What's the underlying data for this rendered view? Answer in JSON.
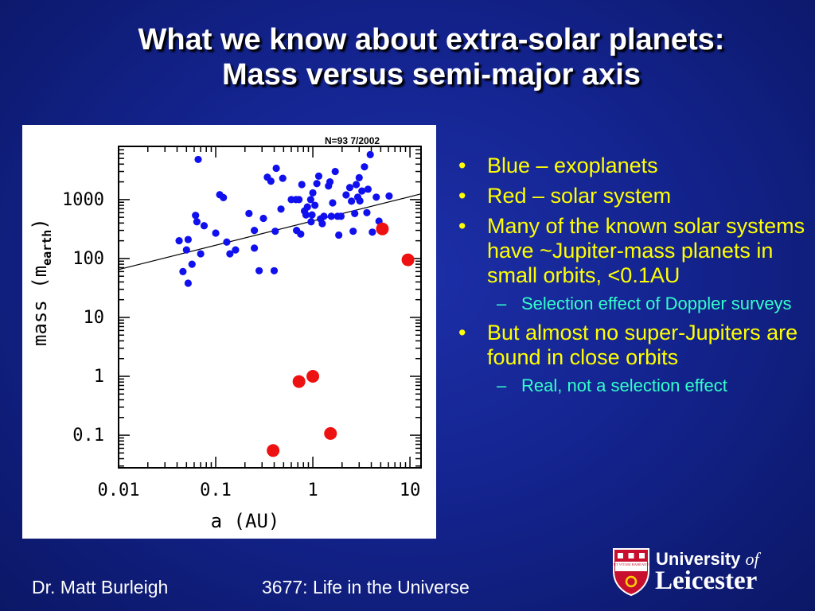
{
  "slide": {
    "title_line1": "What we know about extra-solar planets:",
    "title_line2": "Mass versus semi-major axis"
  },
  "bullets": [
    {
      "level": 1,
      "text": "Blue – exoplanets"
    },
    {
      "level": 1,
      "text": "Red – solar system"
    },
    {
      "level": 1,
      "text": "Many of the known solar systems have ~Jupiter-mass planets in small orbits, <0.1AU"
    },
    {
      "level": 2,
      "text": "Selection effect of Doppler surveys"
    },
    {
      "level": 1,
      "text": "But almost no super-Jupiters are found in close orbits"
    },
    {
      "level": 2,
      "text": "Real, not a selection effect"
    }
  ],
  "footer": {
    "author": "Dr. Matt Burleigh",
    "course": "3677: Life in the Universe"
  },
  "logo": {
    "line1": "University",
    "line1_of": "of",
    "line2": "Leicester",
    "crest_text": "UT VITAM HABEANT"
  },
  "colors": {
    "background": "#142490",
    "title": "#ffffff",
    "bullet": "#ffff00",
    "sub_bullet": "#33ffcc",
    "exoplanet": "#1010ee",
    "solar_system": "#ee1111"
  },
  "chart_data": {
    "type": "scatter",
    "annotation": "N=93 7/2002",
    "xlabel": "a (AU)",
    "ylabel": "mass (m",
    "ylabel_sub": "earth",
    "ylabel_close": ")",
    "x_scale": "log",
    "y_scale": "log",
    "xlim": [
      0.01,
      13
    ],
    "ylim": [
      0.028,
      8000
    ],
    "x_ticks": [
      {
        "value": 0.01,
        "label": "0.01"
      },
      {
        "value": 0.1,
        "label": "0.1"
      },
      {
        "value": 1,
        "label": "1"
      },
      {
        "value": 10,
        "label": "10"
      }
    ],
    "y_ticks": [
      {
        "value": 0.1,
        "label": "0.1"
      },
      {
        "value": 1,
        "label": "1"
      },
      {
        "value": 10,
        "label": "10"
      },
      {
        "value": 100,
        "label": "100"
      },
      {
        "value": 1000,
        "label": "1000"
      }
    ],
    "fit_line": {
      "x": [
        0.01,
        13
      ],
      "y": [
        65,
        1250
      ]
    },
    "series": [
      {
        "name": "exoplanets",
        "color": "#1010ee",
        "points": [
          [
            0.042,
            200
          ],
          [
            0.046,
            60
          ],
          [
            0.05,
            140
          ],
          [
            0.052,
            210
          ],
          [
            0.052,
            38
          ],
          [
            0.057,
            80
          ],
          [
            0.062,
            540
          ],
          [
            0.064,
            420
          ],
          [
            0.066,
            4800
          ],
          [
            0.07,
            120
          ],
          [
            0.076,
            360
          ],
          [
            0.1,
            270
          ],
          [
            0.11,
            1210
          ],
          [
            0.12,
            1080
          ],
          [
            0.13,
            190
          ],
          [
            0.14,
            120
          ],
          [
            0.16,
            140
          ],
          [
            0.22,
            580
          ],
          [
            0.25,
            300
          ],
          [
            0.25,
            150
          ],
          [
            0.28,
            62
          ],
          [
            0.31,
            480
          ],
          [
            0.34,
            2400
          ],
          [
            0.37,
            2050
          ],
          [
            0.4,
            62
          ],
          [
            0.41,
            290
          ],
          [
            0.42,
            3400
          ],
          [
            0.47,
            690
          ],
          [
            0.49,
            2300
          ],
          [
            0.6,
            1000
          ],
          [
            0.67,
            1000
          ],
          [
            0.68,
            300
          ],
          [
            0.72,
            1000
          ],
          [
            0.75,
            260
          ],
          [
            0.77,
            1800
          ],
          [
            0.82,
            640
          ],
          [
            0.85,
            550
          ],
          [
            0.88,
            750
          ],
          [
            0.95,
            1000
          ],
          [
            0.96,
            420
          ],
          [
            0.98,
            550
          ],
          [
            1.0,
            1300
          ],
          [
            1.05,
            800
          ],
          [
            1.1,
            1870
          ],
          [
            1.15,
            2500
          ],
          [
            1.2,
            470
          ],
          [
            1.25,
            390
          ],
          [
            1.3,
            520
          ],
          [
            1.45,
            1700
          ],
          [
            1.5,
            2000
          ],
          [
            1.55,
            520
          ],
          [
            1.6,
            880
          ],
          [
            1.7,
            3000
          ],
          [
            1.8,
            520
          ],
          [
            1.85,
            250
          ],
          [
            1.95,
            520
          ],
          [
            2.2,
            1200
          ],
          [
            2.4,
            1600
          ],
          [
            2.5,
            940
          ],
          [
            2.6,
            290
          ],
          [
            2.7,
            580
          ],
          [
            2.8,
            1800
          ],
          [
            2.9,
            1100
          ],
          [
            3.0,
            2350
          ],
          [
            3.05,
            950
          ],
          [
            3.2,
            1400
          ],
          [
            3.4,
            3600
          ],
          [
            3.6,
            600
          ],
          [
            3.7,
            1500
          ],
          [
            3.9,
            5800
          ],
          [
            4.1,
            280
          ],
          [
            4.5,
            1100
          ],
          [
            4.8,
            430
          ],
          [
            5.3,
            300
          ],
          [
            6.1,
            1150
          ]
        ]
      },
      {
        "name": "solar system",
        "color": "#ee1111",
        "points": [
          [
            0.39,
            0.055
          ],
          [
            0.72,
            0.815
          ],
          [
            1.0,
            1.0
          ],
          [
            1.52,
            0.107
          ],
          [
            5.2,
            318
          ],
          [
            9.54,
            95
          ]
        ]
      }
    ]
  }
}
